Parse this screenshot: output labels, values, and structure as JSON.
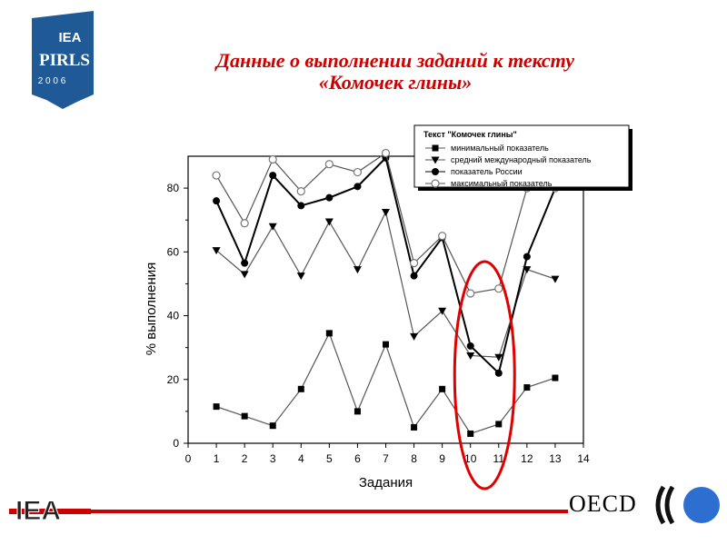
{
  "header": {
    "logo_brand": "IEA",
    "logo_name": "PIRLS",
    "logo_year": "2 0 0 6",
    "title_line1": "Данные о выполнении заданий к тексту",
    "title_line2": "«Комочек глины»"
  },
  "footer": {
    "left_logo": "IEA",
    "right_logo": "OECD"
  },
  "colors": {
    "title": "#cc0000",
    "logo_blue": "#1f5a96",
    "highlight": "#e00000",
    "footer_line": "#cc0000",
    "oecd_circle": "#2d6fd0"
  },
  "chart_data": {
    "type": "line",
    "title": "",
    "xlabel": "Задания",
    "ylabel": "% выполнения",
    "xlim": [
      0,
      14
    ],
    "ylim": [
      0,
      90
    ],
    "xticks": [
      "0",
      "1",
      "2",
      "3",
      "4",
      "5",
      "6",
      "7",
      "8",
      "9",
      "10",
      "11",
      "12",
      "13",
      "14"
    ],
    "yticks": [
      "0",
      "20",
      "40",
      "60",
      "80"
    ],
    "grid": false,
    "legend_title": "Текст \"Комочек глины\"",
    "legend_position": "top-right",
    "x": [
      1,
      2,
      3,
      4,
      5,
      6,
      7,
      8,
      9,
      10,
      11,
      12,
      13
    ],
    "series": [
      {
        "name": "минимальный показатель",
        "marker": "square",
        "values": [
          11.5,
          8.5,
          5.5,
          17,
          34.5,
          10,
          31,
          5,
          17,
          3,
          6,
          17.5,
          20.5
        ]
      },
      {
        "name": "средний международный показатель",
        "marker": "triangle-down",
        "values": [
          60.5,
          53,
          68,
          52.5,
          69.5,
          54.5,
          72.5,
          33.5,
          41.5,
          27.5,
          27,
          54.5,
          51.5
        ]
      },
      {
        "name": "показатель России",
        "marker": "filled-circle",
        "values": [
          76,
          56.5,
          84,
          74.5,
          77,
          80.5,
          89.5,
          52.5,
          64.5,
          30.5,
          22,
          58.5,
          80
        ]
      },
      {
        "name": "максимальный показатель",
        "marker": "open-circle",
        "values": [
          84,
          69,
          89,
          79,
          87.5,
          85,
          91,
          56.5,
          65,
          47,
          48.5,
          80,
          80
        ]
      }
    ],
    "annotation": {
      "type": "ellipse",
      "encloses_x": [
        10,
        11
      ]
    }
  }
}
